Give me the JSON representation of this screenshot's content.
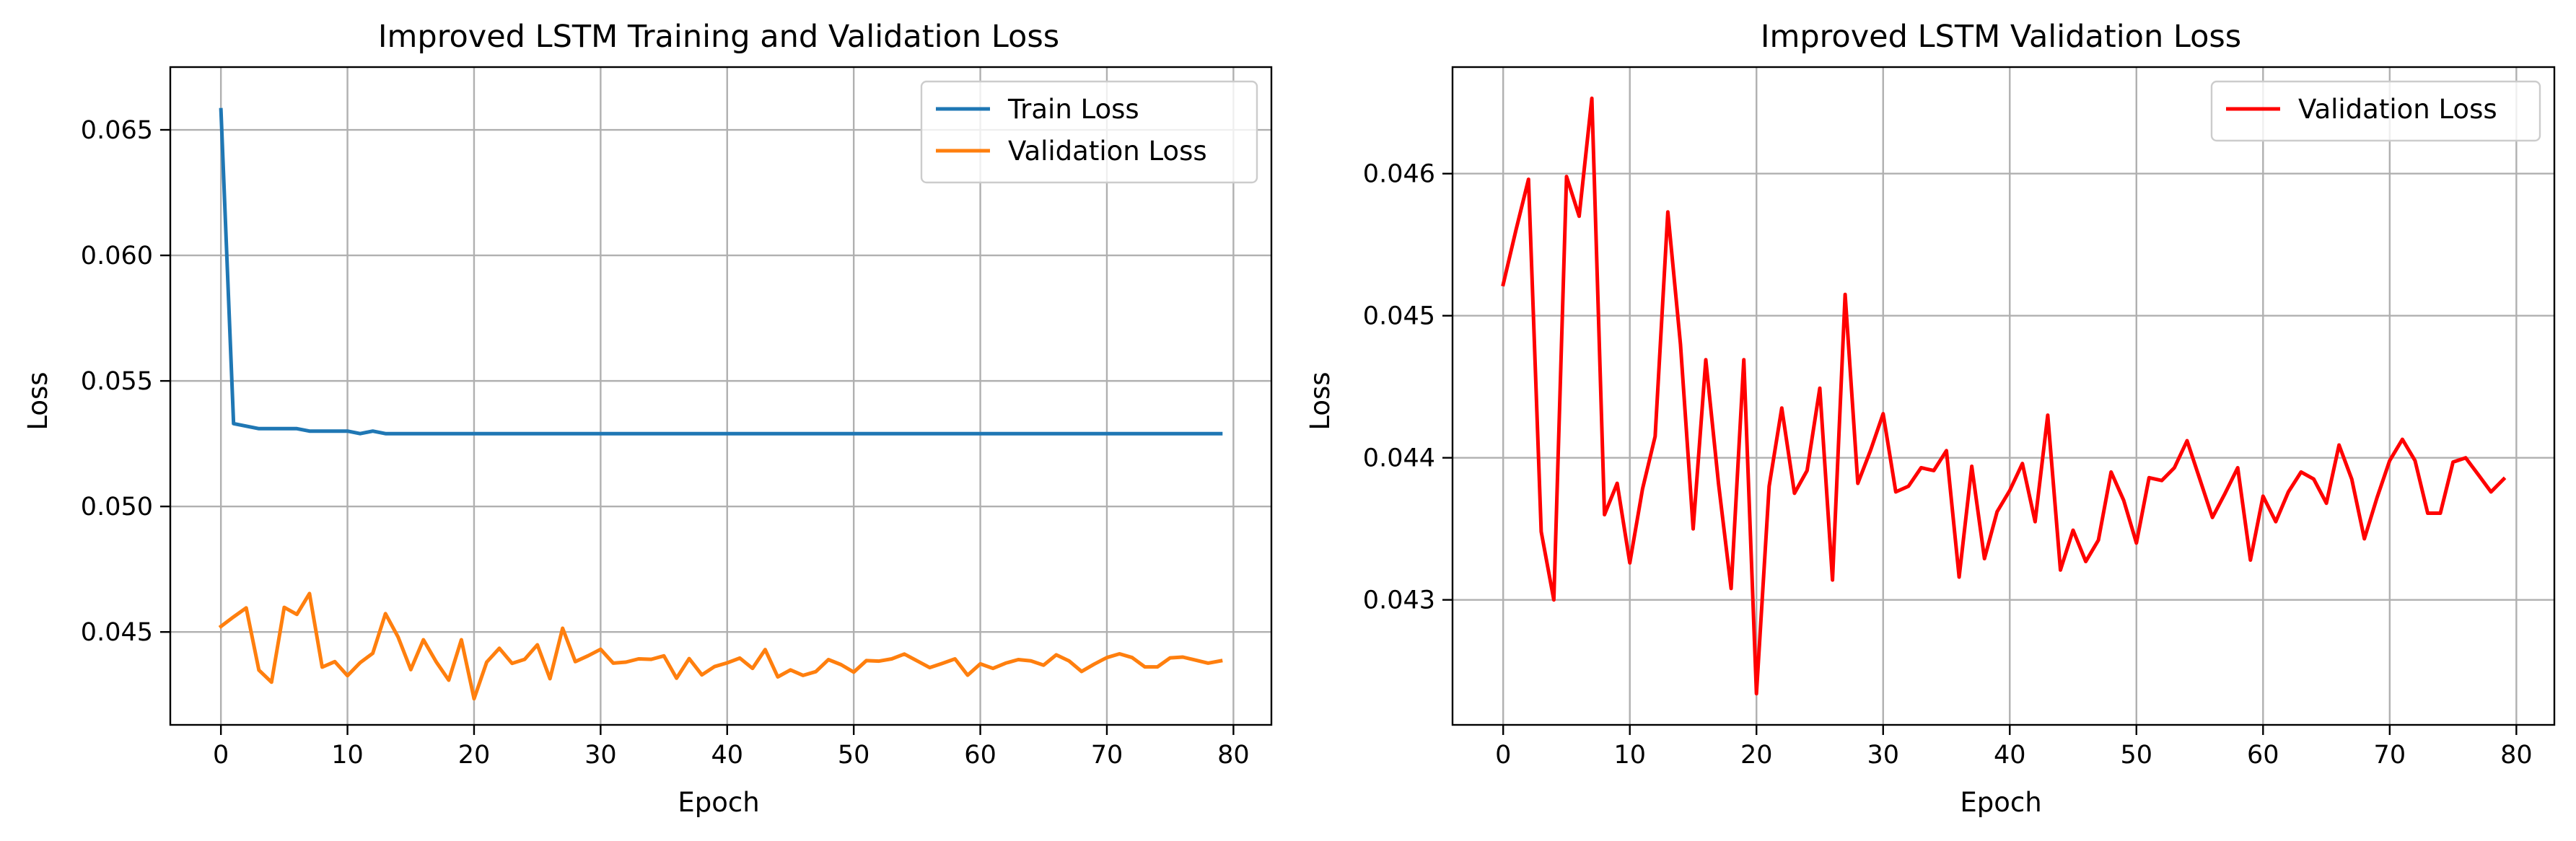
{
  "chart_data": [
    {
      "type": "line",
      "title": "Improved LSTM Training and Validation Loss",
      "xlabel": "Epoch",
      "ylabel": "Loss",
      "xlim": [
        -4,
        83
      ],
      "ylim": [
        0.0413,
        0.0675
      ],
      "xticks": [
        0,
        10,
        20,
        30,
        40,
        50,
        60,
        70,
        80
      ],
      "yticks": [
        0.045,
        0.05,
        0.055,
        0.06,
        0.065
      ],
      "ytick_labels": [
        "0.045",
        "0.050",
        "0.055",
        "0.060",
        "0.065"
      ],
      "grid": true,
      "legend_position": "top-right",
      "x": [
        0,
        1,
        2,
        3,
        4,
        5,
        6,
        7,
        8,
        9,
        10,
        11,
        12,
        13,
        14,
        15,
        16,
        17,
        18,
        19,
        20,
        21,
        22,
        23,
        24,
        25,
        26,
        27,
        28,
        29,
        30,
        31,
        32,
        33,
        34,
        35,
        36,
        37,
        38,
        39,
        40,
        41,
        42,
        43,
        44,
        45,
        46,
        47,
        48,
        49,
        50,
        51,
        52,
        53,
        54,
        55,
        56,
        57,
        58,
        59,
        60,
        61,
        62,
        63,
        64,
        65,
        66,
        67,
        68,
        69,
        70,
        71,
        72,
        73,
        74,
        75,
        76,
        77,
        78,
        79
      ],
      "series": [
        {
          "name": "Train Loss",
          "color": "#1f77b4",
          "values": [
            0.0658,
            0.0533,
            0.0532,
            0.0531,
            0.0531,
            0.0531,
            0.0531,
            0.053,
            0.053,
            0.053,
            0.053,
            0.0529,
            0.053,
            0.0529,
            0.0529,
            0.0529,
            0.0529,
            0.0529,
            0.0529,
            0.0529,
            0.0529,
            0.0529,
            0.0529,
            0.0529,
            0.0529,
            0.0529,
            0.0529,
            0.0529,
            0.0529,
            0.0529,
            0.0529,
            0.0529,
            0.0529,
            0.0529,
            0.0529,
            0.0529,
            0.0529,
            0.0529,
            0.0529,
            0.0529,
            0.0529,
            0.0529,
            0.0529,
            0.0529,
            0.0529,
            0.0529,
            0.0529,
            0.0529,
            0.0529,
            0.0529,
            0.0529,
            0.0529,
            0.0529,
            0.0529,
            0.0529,
            0.0529,
            0.0529,
            0.0529,
            0.0529,
            0.0529,
            0.0529,
            0.0529,
            0.0529,
            0.0529,
            0.0529,
            0.0529,
            0.0529,
            0.0529,
            0.0529,
            0.0529,
            0.0529,
            0.0529,
            0.0529,
            0.0529,
            0.0529,
            0.0529,
            0.0529,
            0.0529,
            0.0529,
            0.0529
          ]
        },
        {
          "name": "Validation Loss",
          "color": "#ff7f0e",
          "values": [
            0.04522,
            0.0456,
            0.04596,
            0.04348,
            0.043,
            0.04598,
            0.0457,
            0.04653,
            0.0436,
            0.04382,
            0.04326,
            0.04378,
            0.04415,
            0.04573,
            0.0448,
            0.0435,
            0.04469,
            0.04382,
            0.04308,
            0.04469,
            0.04234,
            0.0438,
            0.04435,
            0.04375,
            0.04391,
            0.04449,
            0.04314,
            0.04515,
            0.04382,
            0.04405,
            0.04431,
            0.04376,
            0.0438,
            0.04393,
            0.04391,
            0.04405,
            0.04316,
            0.04394,
            0.04329,
            0.04362,
            0.04377,
            0.04396,
            0.04355,
            0.0443,
            0.04321,
            0.04349,
            0.04327,
            0.04342,
            0.0439,
            0.0437,
            0.0434,
            0.04386,
            0.04384,
            0.04393,
            0.04412,
            0.04385,
            0.04358,
            0.04375,
            0.04393,
            0.04328,
            0.04373,
            0.04355,
            0.04376,
            0.0439,
            0.04385,
            0.04368,
            0.04409,
            0.04385,
            0.04343,
            0.04372,
            0.04398,
            0.04413,
            0.04398,
            0.04361,
            0.04361,
            0.04397,
            0.044,
            0.04388,
            0.04376,
            0.04385
          ]
        }
      ]
    },
    {
      "type": "line",
      "title": "Improved LSTM Validation Loss",
      "xlabel": "Epoch",
      "ylabel": "Loss",
      "xlim": [
        -4,
        83
      ],
      "ylim": [
        0.04212,
        0.04675
      ],
      "xticks": [
        0,
        10,
        20,
        30,
        40,
        50,
        60,
        70,
        80
      ],
      "yticks": [
        0.043,
        0.044,
        0.045,
        0.046
      ],
      "ytick_labels": [
        "0.043",
        "0.044",
        "0.045",
        "0.046"
      ],
      "grid": true,
      "legend_position": "top-right",
      "x": [
        0,
        1,
        2,
        3,
        4,
        5,
        6,
        7,
        8,
        9,
        10,
        11,
        12,
        13,
        14,
        15,
        16,
        17,
        18,
        19,
        20,
        21,
        22,
        23,
        24,
        25,
        26,
        27,
        28,
        29,
        30,
        31,
        32,
        33,
        34,
        35,
        36,
        37,
        38,
        39,
        40,
        41,
        42,
        43,
        44,
        45,
        46,
        47,
        48,
        49,
        50,
        51,
        52,
        53,
        54,
        55,
        56,
        57,
        58,
        59,
        60,
        61,
        62,
        63,
        64,
        65,
        66,
        67,
        68,
        69,
        70,
        71,
        72,
        73,
        74,
        75,
        76,
        77,
        78,
        79
      ],
      "series": [
        {
          "name": "Validation Loss",
          "color": "#ff0000",
          "values": [
            0.04522,
            0.0456,
            0.04596,
            0.04348,
            0.043,
            0.04598,
            0.0457,
            0.04653,
            0.0436,
            0.04382,
            0.04326,
            0.04378,
            0.04415,
            0.04573,
            0.0448,
            0.0435,
            0.04469,
            0.04382,
            0.04308,
            0.04469,
            0.04234,
            0.0438,
            0.04435,
            0.04375,
            0.04391,
            0.04449,
            0.04314,
            0.04515,
            0.04382,
            0.04405,
            0.04431,
            0.04376,
            0.0438,
            0.04393,
            0.04391,
            0.04405,
            0.04316,
            0.04394,
            0.04329,
            0.04362,
            0.04377,
            0.04396,
            0.04355,
            0.0443,
            0.04321,
            0.04349,
            0.04327,
            0.04342,
            0.0439,
            0.0437,
            0.0434,
            0.04386,
            0.04384,
            0.04393,
            0.04412,
            0.04385,
            0.04358,
            0.04375,
            0.04393,
            0.04328,
            0.04373,
            0.04355,
            0.04376,
            0.0439,
            0.04385,
            0.04368,
            0.04409,
            0.04385,
            0.04343,
            0.04372,
            0.04398,
            0.04413,
            0.04398,
            0.04361,
            0.04361,
            0.04397,
            0.044,
            0.04388,
            0.04376,
            0.04385
          ]
        }
      ]
    }
  ]
}
